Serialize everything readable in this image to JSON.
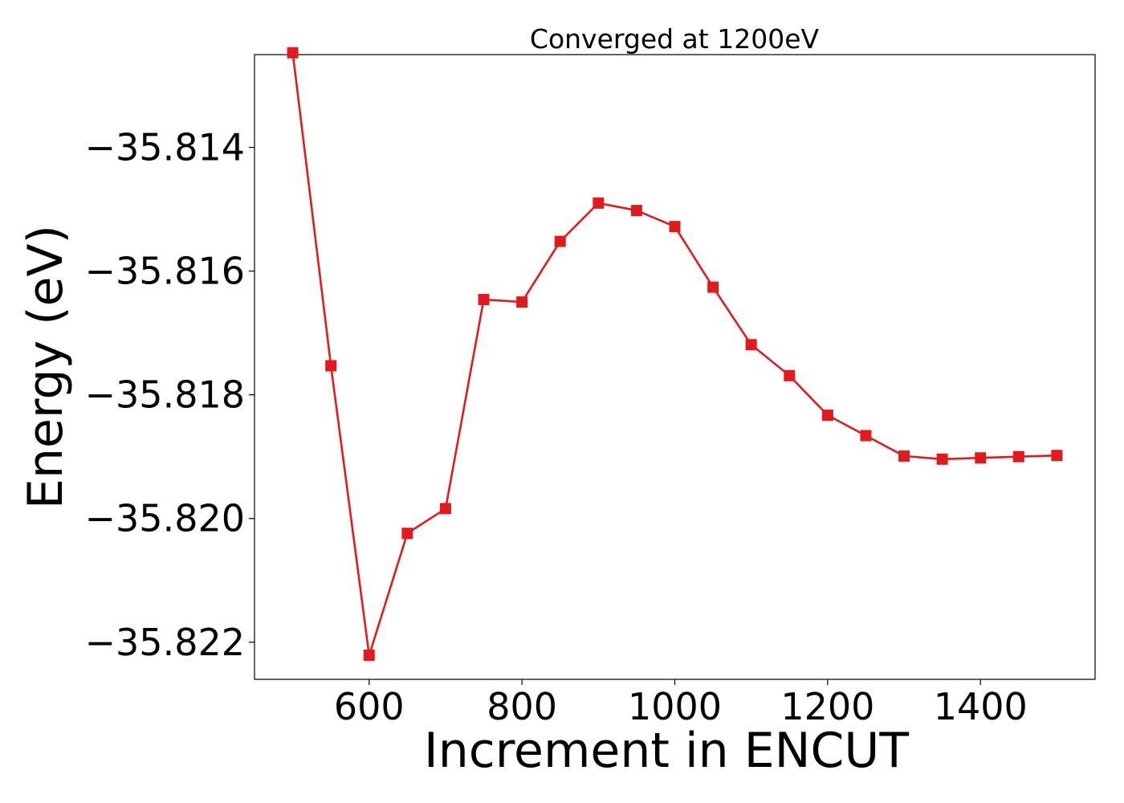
{
  "chart_data": {
    "type": "line",
    "title": "Converged at 1200eV",
    "xlabel": "Increment in ENCUT",
    "ylabel": "Energy (eV)",
    "xlim": [
      450,
      1550
    ],
    "ylim": [
      -35.8226,
      -35.8125
    ],
    "xticks": [
      600,
      800,
      1000,
      1200,
      1400
    ],
    "xtick_labels": [
      "600",
      "800",
      "1000",
      "1200",
      "1400"
    ],
    "yticks": [
      -35.814,
      -35.816,
      -35.818,
      -35.82,
      -35.822
    ],
    "ytick_labels": [
      "−35.814",
      "−35.816",
      "−35.818",
      "−35.820",
      "−35.822"
    ],
    "grid": false,
    "series": [
      {
        "color": "#e31a1c",
        "marker": "square",
        "x": [
          500,
          550,
          600,
          650,
          700,
          750,
          800,
          850,
          900,
          950,
          1000,
          1050,
          1100,
          1150,
          1200,
          1250,
          1300,
          1350,
          1400,
          1450,
          1500
        ],
        "y": [
          -35.81247,
          -35.81753,
          -35.82221,
          -35.82024,
          -35.81984,
          -35.81646,
          -35.8165,
          -35.81552,
          -35.8149,
          -35.81502,
          -35.81528,
          -35.81626,
          -35.81719,
          -35.81769,
          -35.81833,
          -35.81866,
          -35.81899,
          -35.81904,
          -35.81902,
          -35.819,
          -35.81898
        ]
      }
    ]
  }
}
